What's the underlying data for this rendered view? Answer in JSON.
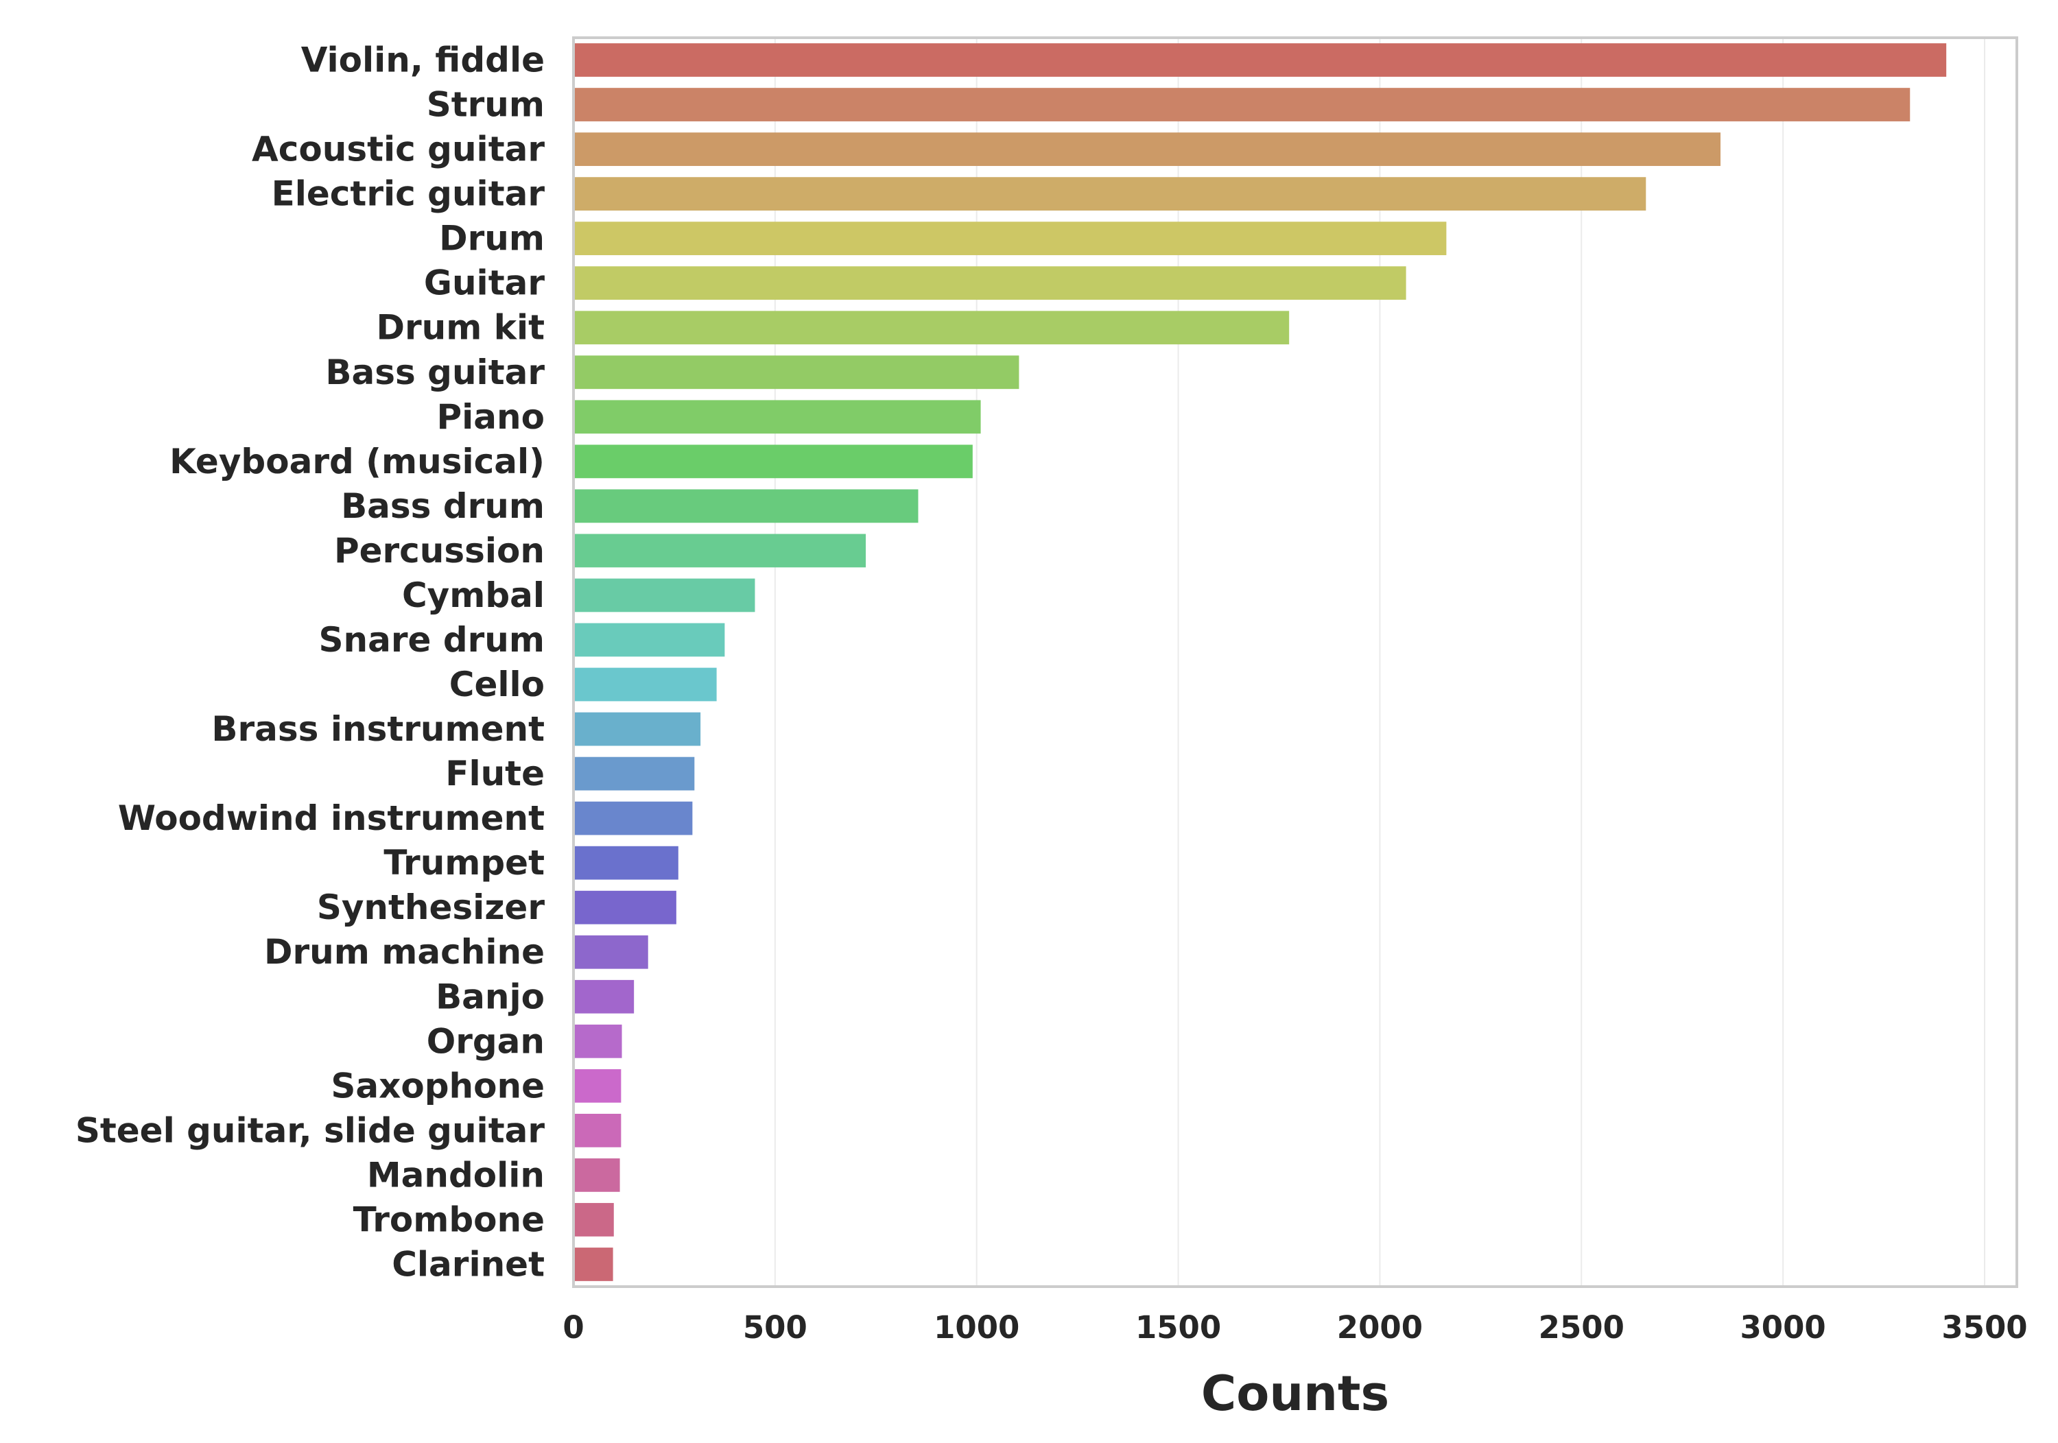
{
  "chart_data": {
    "type": "bar",
    "orientation": "horizontal",
    "title": "",
    "xlabel": "Counts",
    "ylabel": "",
    "xlim": [
      0,
      3580
    ],
    "xticks": [
      0,
      500,
      1000,
      1500,
      2000,
      2500,
      3000,
      3500
    ],
    "grid": true,
    "legend": "none",
    "categories": [
      "Violin, fiddle",
      "Strum",
      "Acoustic guitar",
      "Electric guitar",
      "Drum",
      "Guitar",
      "Drum kit",
      "Bass guitar",
      "Piano",
      "Keyboard (musical)",
      "Bass drum",
      "Percussion",
      "Cymbal",
      "Snare drum",
      "Cello",
      "Brass instrument",
      "Flute",
      "Woodwind instrument",
      "Trumpet",
      "Synthesizer",
      "Drum machine",
      "Banjo",
      "Organ",
      "Saxophone",
      "Steel guitar, slide guitar",
      "Mandolin",
      "Trombone",
      "Clarinet"
    ],
    "values": [
      3405,
      3315,
      2845,
      2660,
      2165,
      2065,
      1775,
      1105,
      1010,
      990,
      855,
      725,
      450,
      375,
      355,
      315,
      300,
      295,
      260,
      255,
      185,
      150,
      120,
      118,
      118,
      115,
      100,
      98
    ],
    "colors": [
      "#cb6b63",
      "#cb8367",
      "#cc9a67",
      "#ceac68",
      "#cdc765",
      "#c1cb65",
      "#a8cc65",
      "#93cb65",
      "#80cc68",
      "#6acd69",
      "#68cb7d",
      "#68cc91",
      "#68cba5",
      "#69cbbb",
      "#6ac7cd",
      "#69b0cc",
      "#6a9acd",
      "#6986cd",
      "#6a71cd",
      "#7866cd",
      "#8d67cc",
      "#a266cc",
      "#b66acb",
      "#cb69cb",
      "#cb69b8",
      "#cb699f",
      "#cb6888",
      "#cb6874"
    ]
  }
}
